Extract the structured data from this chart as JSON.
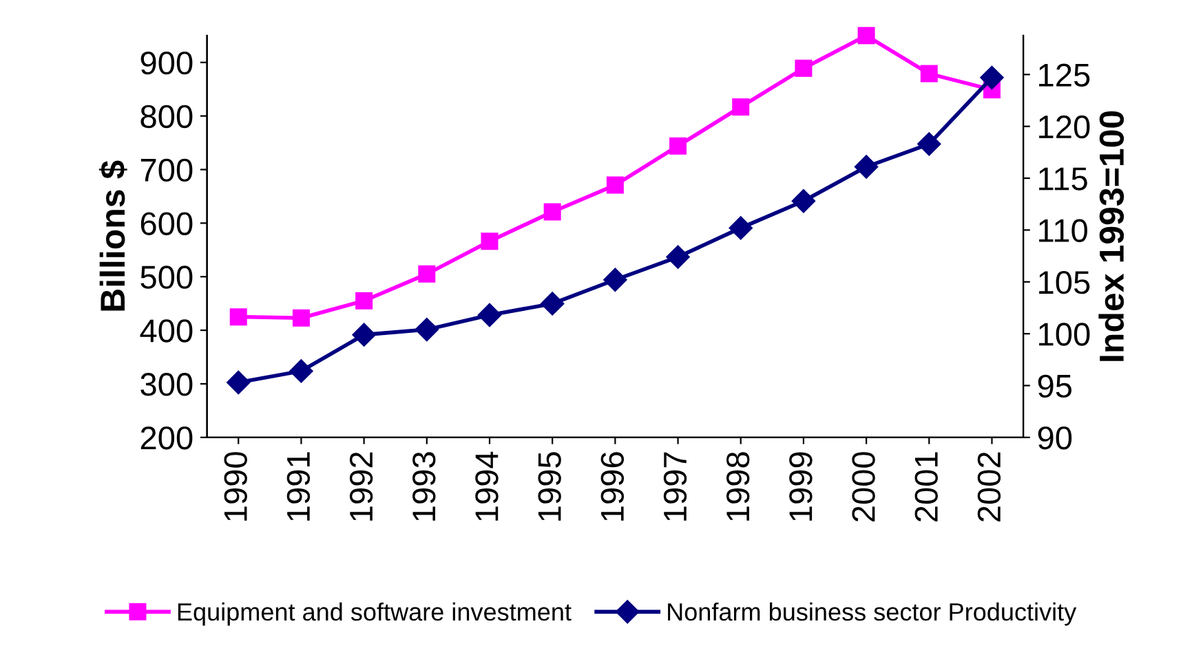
{
  "chart_data": {
    "type": "line",
    "ylabel": "Billions $",
    "y2label": "Index 1993=100",
    "categories": [
      "1990",
      "1991",
      "1992",
      "1993",
      "1994",
      "1995",
      "1996",
      "1997",
      "1998",
      "1999",
      "2000",
      "2001",
      "2002"
    ],
    "series": [
      {
        "name": "Equipment and software investment",
        "color": "#ff00ff",
        "marker": "square",
        "values": [
          425,
          423,
          455,
          505,
          566,
          621,
          671,
          744,
          817,
          889,
          950,
          879,
          849
        ]
      },
      {
        "name": "Nonfarm business sector Productivity",
        "color": "#000080",
        "marker": "diamond",
        "axis": "y2",
        "values": [
          95.3,
          96.4,
          99.9,
          100.4,
          101.8,
          102.9,
          105.2,
          107.4,
          110.2,
          112.8,
          116.1,
          118.3,
          124.7
        ]
      }
    ],
    "ylim": [
      200,
      950
    ],
    "yticks": [
      200,
      300,
      400,
      500,
      600,
      700,
      800,
      900
    ],
    "y2lim": [
      90,
      128.75
    ],
    "y2ticks": [
      90,
      95,
      100,
      105,
      110,
      115,
      120,
      125
    ],
    "grid": false,
    "legend": "bottom",
    "line_style": "solid"
  }
}
